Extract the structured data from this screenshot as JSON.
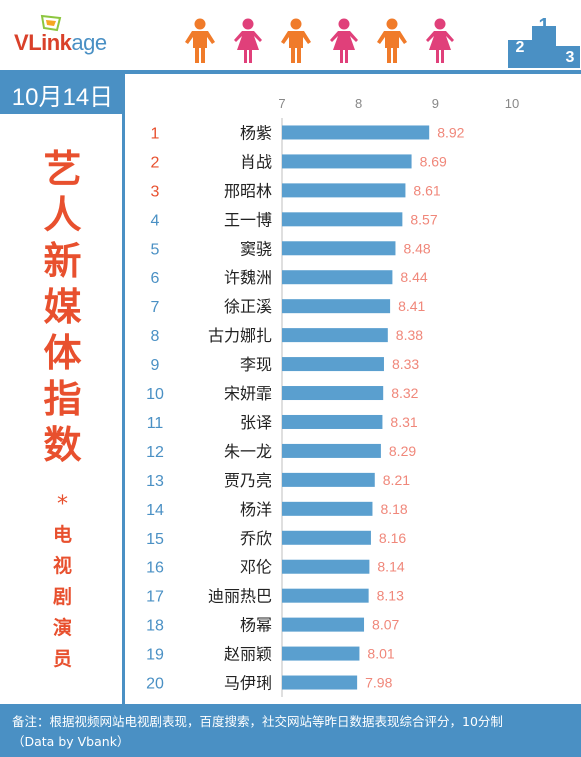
{
  "header": {
    "logo_v": "V",
    "logo_link": "Link",
    "logo_age": "age",
    "people_icons": [
      "person-male-icon",
      "person-female-icon",
      "person-male-icon",
      "person-female-icon",
      "person-male-icon",
      "person-female-icon"
    ],
    "podium_icon": "podium-icon",
    "podium_numbers": [
      "2",
      "1",
      "3"
    ]
  },
  "date": "10月14日",
  "side_title": {
    "main_chars": [
      "艺",
      "人",
      "新",
      "媒",
      "体",
      "指",
      "数"
    ],
    "star": "*",
    "sub_chars": [
      "电",
      "视",
      "剧",
      "演",
      "员"
    ]
  },
  "colors": {
    "accent_blue": "#4a90c4",
    "bar": "#5a9fcf",
    "title_red": "#e8502e",
    "rank_top3": "#e8502e",
    "rank_other": "#4a90c4",
    "value_label": "#f0877a",
    "male_icon": "#f07b2a",
    "female_icon": "#e0407a"
  },
  "chart_data": {
    "type": "bar",
    "orientation": "horizontal",
    "xlim": [
      7,
      10
    ],
    "x_ticks": [
      "7",
      "8",
      "9",
      "10"
    ],
    "grid": false,
    "ranks": [
      "1",
      "2",
      "3",
      "4",
      "5",
      "6",
      "7",
      "8",
      "9",
      "10",
      "11",
      "12",
      "13",
      "14",
      "15",
      "16",
      "17",
      "18",
      "19",
      "20"
    ],
    "categories": [
      "杨紫",
      "肖战",
      "邢昭林",
      "王一博",
      "窦骁",
      "许魏洲",
      "徐正溪",
      "古力娜扎",
      "李现",
      "宋妍霏",
      "张译",
      "朱一龙",
      "贾乃亮",
      "杨洋",
      "乔欣",
      "邓伦",
      "迪丽热巴",
      "杨幂",
      "赵丽颖",
      "马伊琍"
    ],
    "values": [
      8.92,
      8.69,
      8.61,
      8.57,
      8.48,
      8.44,
      8.41,
      8.38,
      8.33,
      8.32,
      8.31,
      8.29,
      8.21,
      8.18,
      8.16,
      8.14,
      8.13,
      8.07,
      8.01,
      7.98
    ],
    "value_labels": [
      "8.92",
      "8.69",
      "8.61",
      "8.57",
      "8.48",
      "8.44",
      "8.41",
      "8.38",
      "8.33",
      "8.32",
      "8.31",
      "8.29",
      "8.21",
      "8.18",
      "8.16",
      "8.14",
      "8.13",
      "8.07",
      "8.01",
      "7.98"
    ]
  },
  "footer": {
    "line1": "备注：根据视频网站电视剧表现，百度搜索，社交网站等昨日数据表现综合评分，10分制",
    "line2": "（Data by Vbank）"
  }
}
